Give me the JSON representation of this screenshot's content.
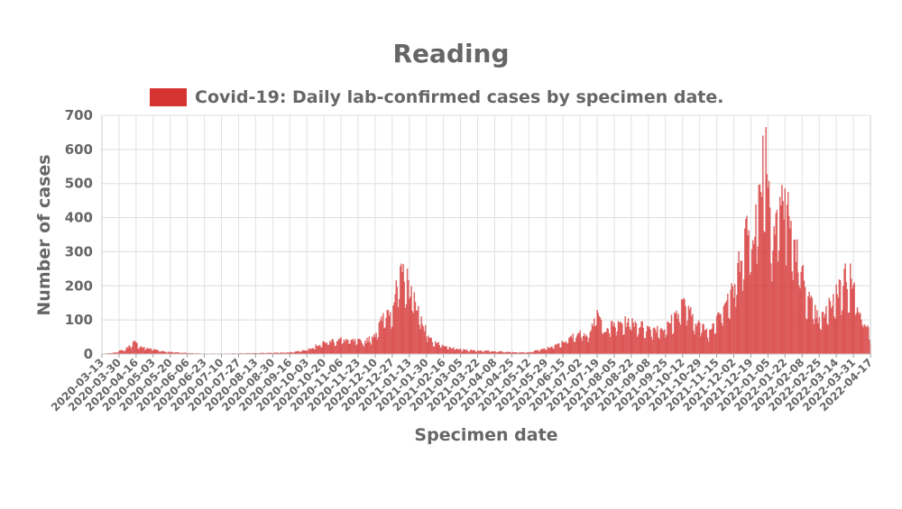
{
  "chart_data": {
    "type": "bar",
    "title": "Reading",
    "xlabel": "Specimen date",
    "ylabel": "Number of cases",
    "ylim": [
      0,
      700
    ],
    "yticks": [
      0,
      100,
      200,
      300,
      400,
      500,
      600,
      700
    ],
    "grid": true,
    "legend_position": "top",
    "x_start": "2020-03-13",
    "x_end": "2022-04-17",
    "x_tick_labels": [
      "2020-03-13",
      "2020-03-30",
      "2020-04-16",
      "2020-05-03",
      "2020-05-20",
      "2020-06-06",
      "2020-06-23",
      "2020-07-10",
      "2020-07-27",
      "2020-08-13",
      "2020-08-30",
      "2020-09-16",
      "2020-10-03",
      "2020-10-20",
      "2020-11-06",
      "2020-11-23",
      "2020-12-10",
      "2020-12-27",
      "2021-01-13",
      "2021-01-30",
      "2021-02-16",
      "2021-03-05",
      "2021-03-22",
      "2021-04-08",
      "2021-04-25",
      "2021-05-12",
      "2021-05-29",
      "2021-06-15",
      "2021-07-02",
      "2021-07-19",
      "2021-08-05",
      "2021-08-22",
      "2021-09-08",
      "2021-09-25",
      "2021-10-12",
      "2021-10-29",
      "2021-11-15",
      "2021-12-02",
      "2021-12-19",
      "2022-01-05",
      "2022-01-22",
      "2022-02-08",
      "2022-02-25",
      "2022-03-14",
      "2022-03-31",
      "2022-04-17"
    ],
    "series": [
      {
        "name": "Covid-19: Daily lab-confirmed cases by specimen date.",
        "color": "#d63333",
        "anchors": [
          [
            "2020-03-13",
            0
          ],
          [
            "2020-03-25",
            3
          ],
          [
            "2020-04-05",
            12
          ],
          [
            "2020-04-14",
            32
          ],
          [
            "2020-04-22",
            18
          ],
          [
            "2020-05-01",
            14
          ],
          [
            "2020-05-15",
            6
          ],
          [
            "2020-06-01",
            3
          ],
          [
            "2020-06-20",
            1
          ],
          [
            "2020-07-15",
            1
          ],
          [
            "2020-08-10",
            2
          ],
          [
            "2020-09-01",
            3
          ],
          [
            "2020-09-16",
            4
          ],
          [
            "2020-10-01",
            10
          ],
          [
            "2020-10-15",
            25
          ],
          [
            "2020-10-25",
            35
          ],
          [
            "2020-11-06",
            40
          ],
          [
            "2020-11-20",
            35
          ],
          [
            "2020-12-01",
            35
          ],
          [
            "2020-12-10",
            55
          ],
          [
            "2020-12-20",
            110
          ],
          [
            "2020-12-27",
            130
          ],
          [
            "2021-01-03",
            200
          ],
          [
            "2021-01-08",
            230
          ],
          [
            "2021-01-13",
            180
          ],
          [
            "2021-01-20",
            140
          ],
          [
            "2021-01-27",
            80
          ],
          [
            "2021-02-03",
            40
          ],
          [
            "2021-02-16",
            20
          ],
          [
            "2021-03-05",
            12
          ],
          [
            "2021-03-22",
            9
          ],
          [
            "2021-04-08",
            7
          ],
          [
            "2021-04-25",
            5
          ],
          [
            "2021-05-12",
            4
          ],
          [
            "2021-05-29",
            15
          ],
          [
            "2021-06-10",
            25
          ],
          [
            "2021-06-20",
            40
          ],
          [
            "2021-07-02",
            60
          ],
          [
            "2021-07-10",
            55
          ],
          [
            "2021-07-19",
            110
          ],
          [
            "2021-07-26",
            70
          ],
          [
            "2021-08-05",
            80
          ],
          [
            "2021-08-22",
            90
          ],
          [
            "2021-09-08",
            70
          ],
          [
            "2021-09-25",
            70
          ],
          [
            "2021-10-06",
            110
          ],
          [
            "2021-10-12",
            140
          ],
          [
            "2021-10-20",
            110
          ],
          [
            "2021-10-29",
            80
          ],
          [
            "2021-11-08",
            60
          ],
          [
            "2021-11-15",
            110
          ],
          [
            "2021-11-25",
            150
          ],
          [
            "2021-12-02",
            170
          ],
          [
            "2021-12-10",
            300
          ],
          [
            "2021-12-15",
            340
          ],
          [
            "2021-12-19",
            330
          ],
          [
            "2021-12-25",
            380
          ],
          [
            "2022-01-01",
            560
          ],
          [
            "2022-01-05",
            470
          ],
          [
            "2022-01-10",
            340
          ],
          [
            "2022-01-15",
            400
          ],
          [
            "2022-01-22",
            420
          ],
          [
            "2022-01-30",
            320
          ],
          [
            "2022-02-08",
            220
          ],
          [
            "2022-02-15",
            150
          ],
          [
            "2022-02-25",
            90
          ],
          [
            "2022-03-05",
            120
          ],
          [
            "2022-03-14",
            170
          ],
          [
            "2022-03-24",
            210
          ],
          [
            "2022-03-31",
            180
          ],
          [
            "2022-04-08",
            110
          ],
          [
            "2022-04-17",
            50
          ]
        ],
        "peaks": [
          [
            "2021-01-06",
            240
          ],
          [
            "2021-01-11",
            250
          ],
          [
            "2021-12-31",
            640
          ],
          [
            "2022-01-03",
            665
          ],
          [
            "2022-01-18",
            435
          ],
          [
            "2022-01-22",
            485
          ],
          [
            "2022-03-23",
            265
          ],
          [
            "2022-03-28",
            265
          ],
          [
            "2021-10-14",
            160
          ],
          [
            "2021-07-20",
            120
          ]
        ]
      }
    ]
  }
}
